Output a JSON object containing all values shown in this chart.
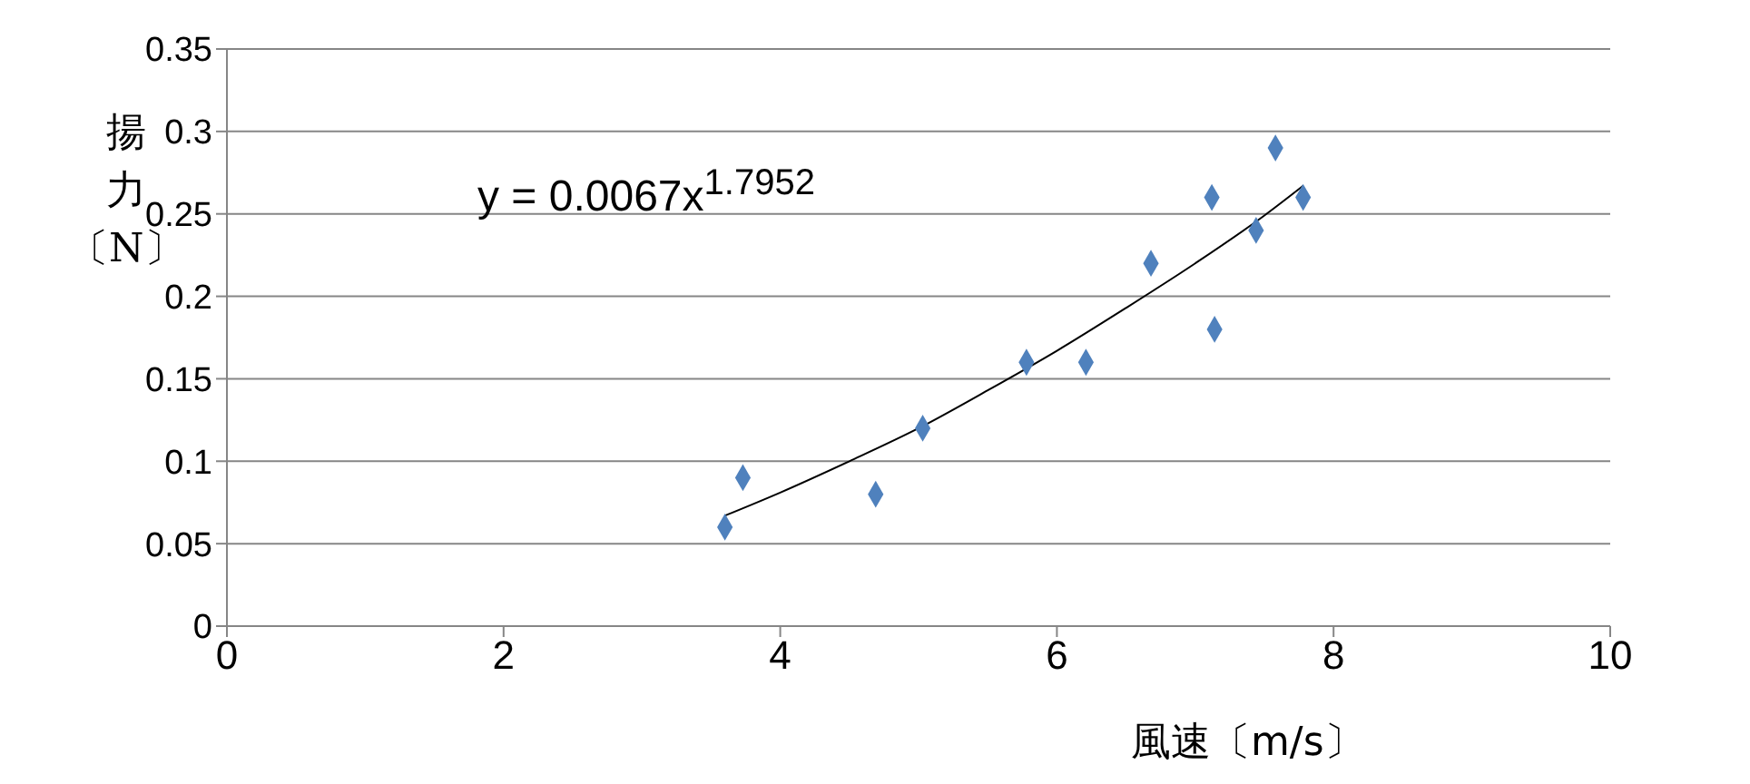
{
  "chart_data": {
    "type": "scatter",
    "xlabel": "風速〔m/s〕",
    "ylabel": "揚力〔N〕",
    "annotations": [
      "y = 0.0067x$^{1.7952}$"
    ],
    "xlim": [
      0,
      10
    ],
    "xticks": [
      0,
      2,
      4,
      6,
      8,
      10
    ],
    "ylim": [
      0,
      0.35
    ],
    "yticks": [
      0,
      0.05,
      0.1,
      0.15,
      0.2,
      0.25,
      0.3,
      0.35
    ],
    "grid": "y",
    "marker": "diamond",
    "series": [
      {
        "color": "#4f81bd",
        "x": [
          3.6,
          3.73,
          4.69,
          5.03,
          5.78,
          6.21,
          6.68,
          7.12,
          7.14,
          7.44,
          7.58,
          7.78
        ],
        "values": [
          0.06,
          0.09,
          0.08,
          0.12,
          0.16,
          0.16,
          0.22,
          0.26,
          0.18,
          0.24,
          0.29,
          0.26
        ]
      },
      {
        "type": "line",
        "marker": "none",
        "color": "#000000",
        "x": [
          3.6,
          4,
          4.5,
          5,
          5.5,
          6,
          6.5,
          7,
          7.5,
          7.78
        ],
        "values": [
          0.067,
          0.081,
          0.1,
          0.12,
          0.143,
          0.167,
          0.193,
          0.22,
          0.249,
          0.267
        ]
      }
    ]
  }
}
